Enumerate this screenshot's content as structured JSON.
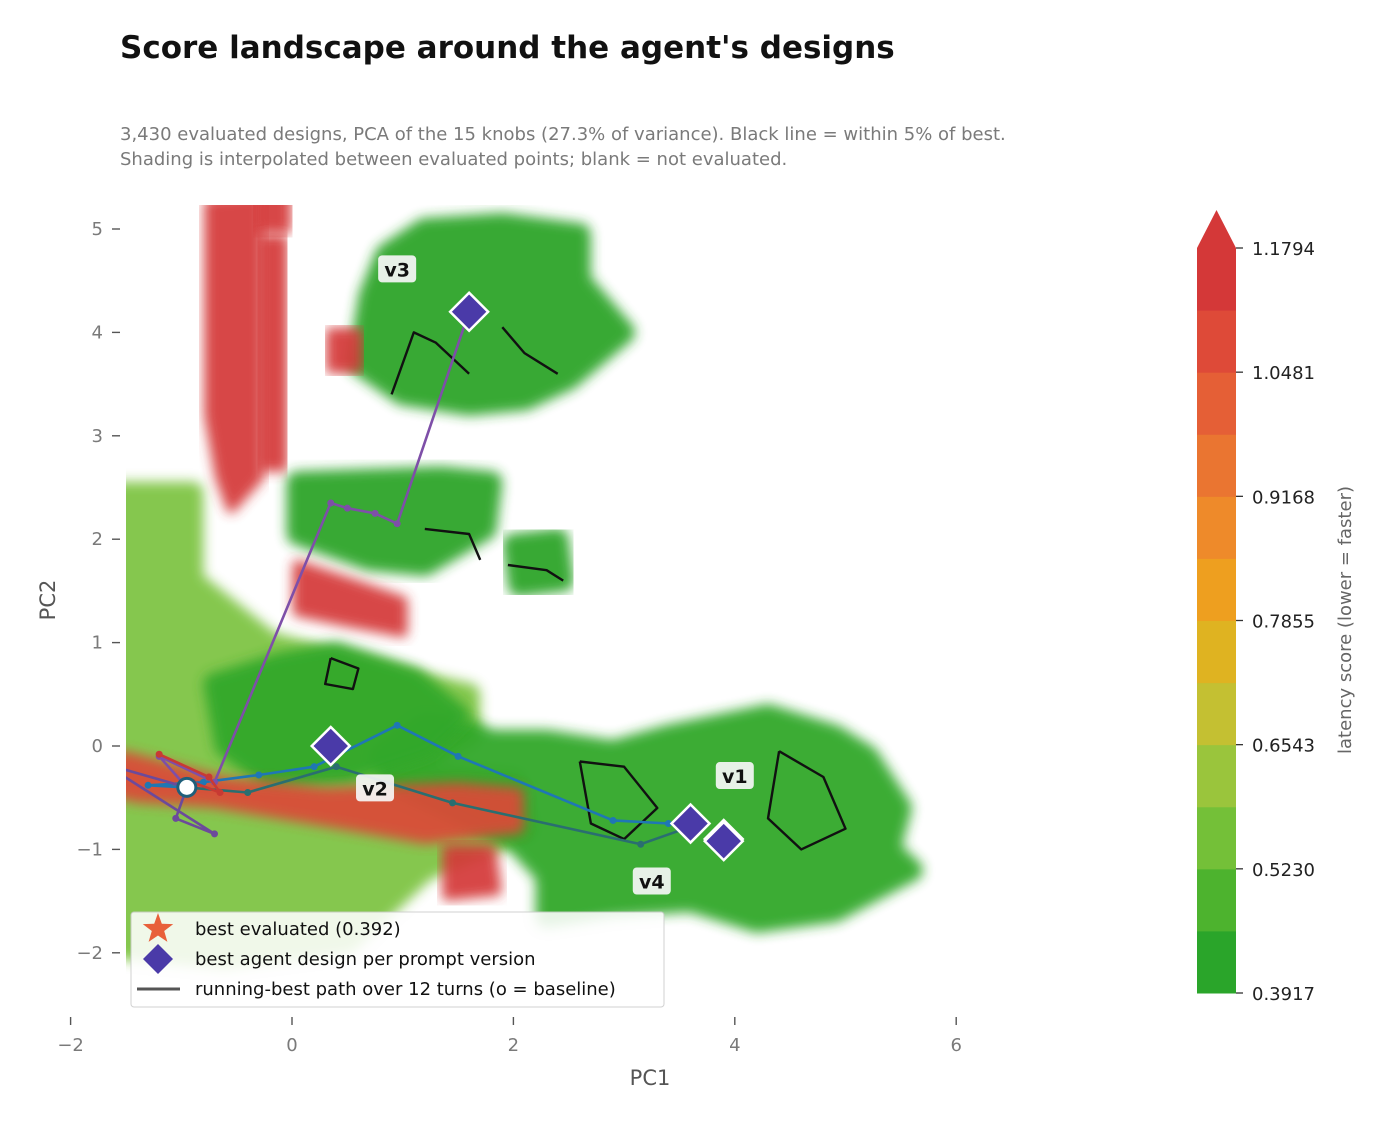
{
  "chart_data": {
    "type": "scatter",
    "title": "Score landscape around the agent's designs",
    "subtitle_lines": [
      "3,430 evaluated designs, PCA of the 15 knobs (27.3% of variance). Black line = within 5% of best.",
      "Shading is interpolated between evaluated points; blank = not evaluated."
    ],
    "xlabel": "PC1",
    "ylabel": "PC2",
    "xlim": [
      -3.3,
      6.0
    ],
    "ylim": [
      -2.55,
      5.3
    ],
    "xticks": [
      {
        "v": -2,
        "label": "−2"
      },
      {
        "v": 0,
        "label": "0"
      },
      {
        "v": 2,
        "label": "2"
      },
      {
        "v": 4,
        "label": "4"
      },
      {
        "v": 6,
        "label": "6"
      }
    ],
    "yticks": [
      {
        "v": -2,
        "label": "−2"
      },
      {
        "v": -1,
        "label": "−1"
      },
      {
        "v": 0,
        "label": "0"
      },
      {
        "v": 1,
        "label": "1"
      },
      {
        "v": 2,
        "label": "2"
      },
      {
        "v": 3,
        "label": "3"
      },
      {
        "v": 4,
        "label": "4"
      },
      {
        "v": 5,
        "label": "5"
      }
    ],
    "grid": false,
    "colorbar": {
      "label": "latency score (lower = faster)",
      "extend": "max",
      "ticks": [
        "0.3917",
        "0.5230",
        "0.6543",
        "0.7855",
        "0.9168",
        "1.0481",
        "1.1794"
      ],
      "levels": [
        "#2aa52a",
        "#4db32e",
        "#74c038",
        "#9ac53c",
        "#c4c032",
        "#dfb321",
        "#ee9f1f",
        "#ee8a2a",
        "#ea7531",
        "#e55f36",
        "#de4a38",
        "#d43838"
      ]
    },
    "shaded_regions": [
      {
        "name": "bottom-left cluster",
        "score": 0.58,
        "color": "#7fc545",
        "points": [
          [
            -2.9,
            -2.0
          ],
          [
            -2.9,
            -0.8
          ],
          [
            -2.7,
            -0.4
          ],
          [
            -2.5,
            0.4
          ],
          [
            -2.4,
            0.6
          ],
          [
            -1.9,
            0.5
          ],
          [
            -1.9,
            2.3
          ],
          [
            -1.7,
            2.45
          ],
          [
            -0.9,
            2.45
          ],
          [
            -0.9,
            1.6
          ],
          [
            -0.2,
            1.0
          ],
          [
            1.2,
            0.6
          ],
          [
            1.6,
            0.5
          ],
          [
            1.6,
            0.1
          ],
          [
            0.9,
            -0.25
          ],
          [
            2.0,
            -0.35
          ],
          [
            2.1,
            -0.8
          ],
          [
            1.2,
            -1.2
          ],
          [
            0.5,
            -1.9
          ],
          [
            -0.6,
            -2.05
          ],
          [
            -1.6,
            -1.95
          ],
          [
            -2.4,
            -2.05
          ]
        ]
      },
      {
        "name": "upper cluster v3",
        "score": 0.43,
        "color": "#2fa52a",
        "points": [
          [
            0.85,
            4.75
          ],
          [
            1.2,
            5.0
          ],
          [
            1.9,
            5.05
          ],
          [
            2.6,
            4.95
          ],
          [
            2.6,
            4.5
          ],
          [
            3.0,
            4.0
          ],
          [
            2.5,
            3.55
          ],
          [
            2.1,
            3.35
          ],
          [
            1.6,
            3.3
          ],
          [
            1.0,
            3.4
          ],
          [
            0.6,
            3.7
          ],
          [
            0.7,
            4.35
          ]
        ]
      },
      {
        "name": "middle cluster",
        "score": 0.43,
        "color": "#2fa52a",
        "points": [
          [
            0.05,
            2.55
          ],
          [
            1.35,
            2.6
          ],
          [
            1.8,
            2.55
          ],
          [
            1.75,
            2.1
          ],
          [
            1.2,
            1.75
          ],
          [
            0.7,
            1.8
          ],
          [
            0.05,
            2.05
          ]
        ]
      },
      {
        "name": "small blob right",
        "score": 0.43,
        "color": "#2fa52a",
        "points": [
          [
            2.0,
            1.95
          ],
          [
            2.4,
            2.0
          ],
          [
            2.45,
            1.6
          ],
          [
            2.05,
            1.55
          ]
        ]
      },
      {
        "name": "right cluster v1 v4",
        "score": 0.45,
        "color": "#33a82b",
        "points": [
          [
            1.6,
            0.15
          ],
          [
            1.8,
            0.05
          ],
          [
            2.3,
            0.05
          ],
          [
            2.9,
            -0.05
          ],
          [
            3.4,
            0.1
          ],
          [
            4.3,
            0.3
          ],
          [
            4.9,
            0.1
          ],
          [
            5.2,
            -0.1
          ],
          [
            5.5,
            -0.6
          ],
          [
            5.4,
            -1.0
          ],
          [
            5.6,
            -1.2
          ],
          [
            4.9,
            -1.6
          ],
          [
            4.2,
            -1.7
          ],
          [
            3.6,
            -1.5
          ],
          [
            2.9,
            -1.55
          ],
          [
            2.3,
            -1.65
          ],
          [
            2.3,
            -1.25
          ],
          [
            2.0,
            -0.9
          ],
          [
            1.4,
            -0.6
          ],
          [
            0.9,
            -0.35
          ],
          [
            0.8,
            -0.1
          ],
          [
            1.2,
            0.2
          ]
        ]
      },
      {
        "name": "center green patch",
        "score": 0.45,
        "color": "#33a82b",
        "points": [
          [
            -0.7,
            0.6
          ],
          [
            -0.1,
            0.8
          ],
          [
            0.4,
            0.9
          ],
          [
            1.1,
            0.65
          ],
          [
            1.5,
            0.3
          ],
          [
            1.2,
            0.0
          ],
          [
            0.5,
            -0.25
          ],
          [
            -0.2,
            -0.3
          ],
          [
            -0.6,
            0.0
          ]
        ]
      }
    ],
    "hot_spots": [
      {
        "name": "tall red column",
        "score": 1.18,
        "color": "#d43838",
        "points": [
          [
            -0.75,
            5.25
          ],
          [
            -0.3,
            5.3
          ],
          [
            -0.3,
            2.6
          ],
          [
            -0.55,
            2.3
          ],
          [
            -0.65,
            2.6
          ],
          [
            -0.75,
            3.2
          ]
        ]
      },
      {
        "name": "column top dot",
        "score": 1.18,
        "color": "#d43838",
        "points": [
          [
            -0.3,
            5.4
          ],
          [
            -0.05,
            5.4
          ],
          [
            -0.05,
            5.0
          ],
          [
            -0.3,
            5.0
          ]
        ]
      },
      {
        "name": "right thin column",
        "score": 1.18,
        "color": "#d43838",
        "points": [
          [
            -0.27,
            4.9
          ],
          [
            -0.08,
            4.9
          ],
          [
            -0.08,
            2.7
          ],
          [
            -0.27,
            2.7
          ]
        ]
      },
      {
        "name": "red arm",
        "score": 1.18,
        "color": "#d43838",
        "points": [
          [
            0.05,
            1.75
          ],
          [
            0.6,
            1.55
          ],
          [
            1.0,
            1.4
          ],
          [
            1.0,
            1.1
          ],
          [
            0.5,
            1.2
          ],
          [
            0.05,
            1.3
          ]
        ]
      },
      {
        "name": "left small red",
        "score": 1.18,
        "color": "#d43838",
        "points": [
          [
            0.35,
            4.0
          ],
          [
            0.6,
            4.0
          ],
          [
            0.6,
            3.65
          ],
          [
            0.35,
            3.65
          ]
        ]
      },
      {
        "name": "diagonal red streak",
        "score": 1.05,
        "color": "#dc4a38",
        "points": [
          [
            -1.9,
            -0.1
          ],
          [
            -1.5,
            -0.1
          ],
          [
            -0.6,
            -0.35
          ],
          [
            0.3,
            -0.45
          ],
          [
            1.5,
            -0.4
          ],
          [
            2.05,
            -0.45
          ],
          [
            2.05,
            -0.8
          ],
          [
            1.2,
            -0.9
          ],
          [
            0.4,
            -0.75
          ],
          [
            -0.7,
            -0.55
          ],
          [
            -1.4,
            -0.5
          ],
          [
            -2.0,
            -0.35
          ]
        ]
      },
      {
        "name": "lower red blob",
        "score": 1.1,
        "color": "#d43838",
        "points": [
          [
            1.4,
            -1.0
          ],
          [
            1.8,
            -1.0
          ],
          [
            1.85,
            -1.4
          ],
          [
            1.4,
            -1.45
          ]
        ]
      }
    ],
    "near_best_contours": [
      {
        "points": [
          [
            0.9,
            3.4
          ],
          [
            1.1,
            4.0
          ],
          [
            1.3,
            3.9
          ],
          [
            1.6,
            3.6
          ]
        ]
      },
      {
        "points": [
          [
            1.9,
            4.05
          ],
          [
            2.1,
            3.8
          ],
          [
            2.4,
            3.6
          ]
        ]
      },
      {
        "points": [
          [
            2.6,
            -0.15
          ],
          [
            3.0,
            -0.2
          ],
          [
            3.3,
            -0.6
          ],
          [
            3.0,
            -0.9
          ],
          [
            2.7,
            -0.75
          ],
          [
            2.6,
            -0.15
          ]
        ]
      },
      {
        "points": [
          [
            4.4,
            -0.05
          ],
          [
            4.8,
            -0.3
          ],
          [
            5.0,
            -0.8
          ],
          [
            4.6,
            -1.0
          ],
          [
            4.3,
            -0.7
          ],
          [
            4.4,
            -0.05
          ]
        ]
      },
      {
        "points": [
          [
            0.35,
            0.85
          ],
          [
            0.6,
            0.75
          ],
          [
            0.55,
            0.55
          ],
          [
            0.3,
            0.6
          ],
          [
            0.35,
            0.85
          ]
        ]
      },
      {
        "points": [
          [
            1.2,
            2.1
          ],
          [
            1.6,
            2.05
          ],
          [
            1.7,
            1.8
          ]
        ]
      },
      {
        "points": [
          [
            1.95,
            1.75
          ],
          [
            2.3,
            1.7
          ],
          [
            2.45,
            1.6
          ]
        ]
      }
    ],
    "series": [
      {
        "name": "running-best path over 12 turns (o = baseline)",
        "color": "#1f77b4",
        "x": [
          -0.95,
          -1.3,
          -0.8,
          -0.3,
          0.2,
          0.95,
          1.5,
          2.9,
          3.4,
          3.6
        ],
        "y": [
          -0.4,
          -0.38,
          -0.35,
          -0.28,
          -0.2,
          0.2,
          -0.1,
          -0.72,
          -0.75,
          -0.75
        ]
      },
      {
        "x": [
          -0.95,
          -1.2,
          -0.7,
          0.35,
          0.5,
          0.75,
          0.95,
          1.6
        ],
        "y": [
          -0.4,
          -0.1,
          -0.35,
          2.35,
          2.3,
          2.25,
          2.15,
          4.2
        ],
        "color": "#7e4fa8"
      },
      {
        "x": [
          -0.95,
          -1.7,
          -0.7,
          -1.05,
          -0.95
        ],
        "y": [
          -0.4,
          -0.17,
          -0.85,
          -0.7,
          -0.4
        ],
        "color": "#6c4a9b"
      },
      {
        "x": [
          -0.95,
          -0.4,
          0.4,
          1.45,
          3.15,
          3.6
        ],
        "y": [
          -0.4,
          -0.45,
          -0.2,
          -0.55,
          -0.95,
          -0.78
        ],
        "color": "#2a6e70"
      },
      {
        "x": [
          -1.2,
          -0.75,
          -0.65,
          -0.9
        ],
        "y": [
          -0.08,
          -0.3,
          -0.45,
          -0.35
        ],
        "color": "#c83a33"
      }
    ],
    "baseline": {
      "x": -0.95,
      "y": -0.4
    },
    "best_evaluated_score": "0.392",
    "best_agent_designs": [
      {
        "label": "v1",
        "x": 3.6,
        "y": -0.75,
        "label_x": 4.0,
        "label_y": -0.3
      },
      {
        "label": "v2",
        "x": 0.35,
        "y": 0.0,
        "label_x": 0.75,
        "label_y": -0.42
      },
      {
        "label": "v3",
        "x": 1.6,
        "y": 4.2,
        "label_x": 0.95,
        "label_y": 4.6
      },
      {
        "label": "v4",
        "x": 3.9,
        "y": -0.9,
        "label_x": 3.25,
        "label_y": -1.32
      }
    ],
    "extra_diamond": {
      "x": 3.9,
      "y": -0.92
    },
    "legend": {
      "placement": "lower-left",
      "entries": [
        {
          "icon": "star-icon",
          "label": "best evaluated  (0.392)"
        },
        {
          "icon": "diamond-icon",
          "label": "best agent design per prompt version"
        },
        {
          "icon": "line-icon",
          "label": "running-best path over 12 turns (o = baseline)"
        }
      ]
    },
    "colors": {
      "diamond": "#4a3aa8",
      "star": "#e8603a",
      "contour": "#111111"
    }
  }
}
